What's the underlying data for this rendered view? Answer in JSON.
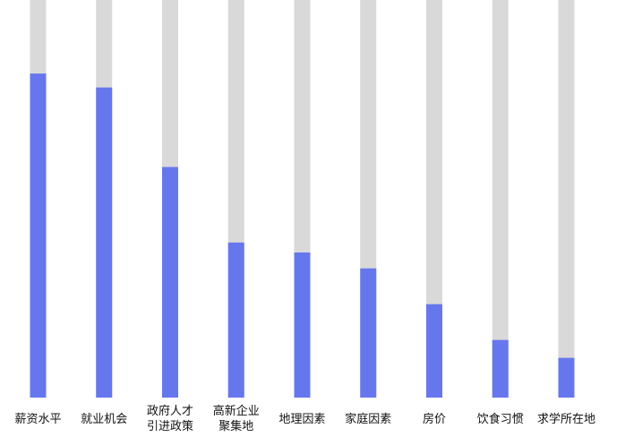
{
  "chart_data": {
    "type": "bar",
    "stacked_background": true,
    "categories": [
      "薪资水平",
      "就业机会",
      "政府人才\n引进政策",
      "高新企业\n聚集地",
      "地理因素",
      "家庭因素",
      "房价",
      "饮食习惯",
      "求学所在地"
    ],
    "values": [
      81.5,
      78,
      58,
      39,
      36.5,
      32.5,
      23.5,
      14.5,
      10
    ],
    "ylim": [
      0,
      100
    ],
    "title": "",
    "xlabel": "",
    "ylabel": "",
    "grid": false,
    "legend": "none",
    "colors": {
      "bar": "#6677ee",
      "track": "#d9d9d9",
      "label": "#111111"
    }
  }
}
